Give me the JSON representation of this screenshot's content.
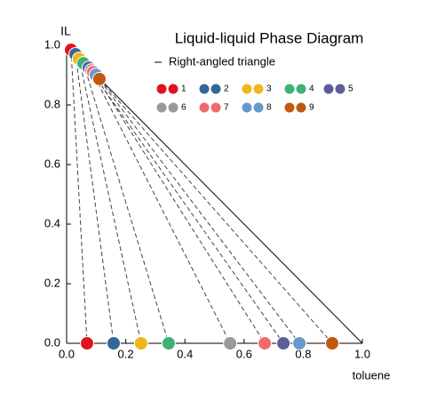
{
  "chart_data": {
    "type": "scatter",
    "title": "Liquid-liquid Phase Diagram",
    "x_label": "toluene",
    "y_label": "IL",
    "xlim": [
      0,
      1
    ],
    "ylim": [
      0,
      1
    ],
    "xticks": [
      {
        "value": 0,
        "label": "0.0"
      },
      0.2,
      0.4,
      0.6,
      0.8,
      {
        "value": 1,
        "label": "1.0"
      }
    ],
    "yticks": [
      {
        "value": 0,
        "label": "0.0"
      },
      0.2,
      0.4,
      0.6,
      0.8,
      {
        "value": 1,
        "label": "1.0"
      }
    ],
    "lines": [
      {
        "name": "Right-angled triangle",
        "color": "#000000",
        "x": [
          0,
          1
        ],
        "values": [
          1,
          0
        ]
      }
    ],
    "series": [
      {
        "name": "1",
        "color": "#e0141e",
        "x": [
          0.015,
          0.069
        ],
        "values": [
          0.985,
          0
        ]
      },
      {
        "name": "2",
        "color": "#336699",
        "x": [
          0.03,
          0.159
        ],
        "values": [
          0.97,
          0
        ]
      },
      {
        "name": "3",
        "color": "#f2b51b",
        "x": [
          0.042,
          0.252
        ],
        "values": [
          0.955,
          0
        ]
      },
      {
        "name": "4",
        "color": "#3cb371",
        "x": [
          0.057,
          0.345
        ],
        "values": [
          0.94,
          0
        ]
      },
      {
        "name": "5",
        "color": "#5e5e9a",
        "x": [
          0.075,
          0.733
        ],
        "values": [
          0.925,
          0
        ]
      },
      {
        "name": "6",
        "color": "#999999",
        "x": [
          0.084,
          0.553
        ],
        "values": [
          0.916,
          0
        ]
      },
      {
        "name": "7",
        "color": "#f26b6b",
        "x": [
          0.09,
          0.67
        ],
        "values": [
          0.91,
          0
        ]
      },
      {
        "name": "8",
        "color": "#6699cc",
        "x": [
          0.099,
          0.787
        ],
        "values": [
          0.901,
          0
        ]
      },
      {
        "name": "9",
        "color": "#c0580f",
        "x": [
          0.111,
          0.898
        ],
        "values": [
          0.887,
          0
        ]
      }
    ]
  }
}
